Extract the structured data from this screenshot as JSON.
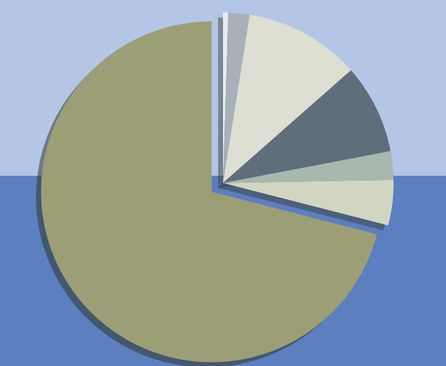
{
  "chart_data": {
    "type": "pie",
    "values": [
      0.5,
      2,
      11,
      8.5,
      2.7,
      4.3,
      71
    ],
    "colors": [
      "#e8ecef",
      "#a8b0ba",
      "#dcdfd2",
      "#606e7c",
      "#a9b8ae",
      "#d2d6c0",
      "#9c9f76"
    ]
  }
}
